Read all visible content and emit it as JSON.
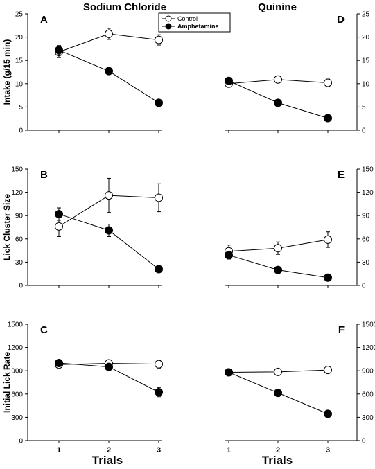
{
  "column_titles": [
    "Sodium Chloride",
    "Quinine"
  ],
  "legend": {
    "control_label": "Control",
    "amphetamine_label": "Amphetamine"
  },
  "x_axis_label": "Trials",
  "chart_data": [
    {
      "type": "line",
      "panel": "A",
      "ylabel": "Intake (g/15 min)",
      "x": [
        1,
        2,
        3
      ],
      "ylim": [
        0,
        25
      ],
      "yticks": [
        0,
        5,
        10,
        15,
        20,
        25
      ],
      "series": [
        {
          "name": "Control",
          "values": [
            16.8,
            20.7,
            19.4
          ],
          "errors": [
            1.2,
            1.2,
            1.1
          ],
          "marker": "open-circle"
        },
        {
          "name": "Amphetamine",
          "values": [
            17.2,
            12.7,
            5.9
          ],
          "errors": [
            1.0,
            0.6,
            0.7
          ],
          "marker": "filled-circle"
        }
      ]
    },
    {
      "type": "line",
      "panel": "B",
      "ylabel": "Lick Cluster Size",
      "x": [
        1,
        2,
        3
      ],
      "ylim": [
        0,
        150
      ],
      "yticks": [
        0,
        30,
        60,
        90,
        120,
        150
      ],
      "series": [
        {
          "name": "Control",
          "values": [
            76,
            116,
            113
          ],
          "errors": [
            13,
            22,
            18
          ],
          "marker": "open-circle"
        },
        {
          "name": "Amphetamine",
          "values": [
            92,
            71,
            21
          ],
          "errors": [
            8,
            8,
            3
          ],
          "marker": "filled-circle"
        }
      ]
    },
    {
      "type": "line",
      "panel": "C",
      "ylabel": "Initial Lick Rate",
      "x": [
        1,
        2,
        3
      ],
      "ylim": [
        0,
        1500
      ],
      "yticks": [
        0,
        300,
        600,
        900,
        1200,
        1500
      ],
      "series": [
        {
          "name": "Control",
          "values": [
            980,
            995,
            985
          ],
          "errors": [
            30,
            30,
            50
          ],
          "marker": "open-circle"
        },
        {
          "name": "Amphetamine",
          "values": [
            1000,
            950,
            625
          ],
          "errors": [
            25,
            25,
            60
          ],
          "marker": "filled-circle"
        }
      ]
    },
    {
      "type": "line",
      "panel": "D",
      "ylabel": "",
      "x": [
        1,
        2,
        3
      ],
      "ylim": [
        0,
        25
      ],
      "yticks": [
        0,
        5,
        10,
        15,
        20,
        25
      ],
      "series": [
        {
          "name": "Control",
          "values": [
            10.0,
            10.9,
            10.2
          ],
          "errors": [
            0.6,
            0.7,
            0.8
          ],
          "marker": "open-circle"
        },
        {
          "name": "Amphetamine",
          "values": [
            10.6,
            5.9,
            2.6
          ],
          "errors": [
            0.5,
            0.4,
            0.3
          ],
          "marker": "filled-circle"
        }
      ]
    },
    {
      "type": "line",
      "panel": "E",
      "ylabel": "",
      "x": [
        1,
        2,
        3
      ],
      "ylim": [
        0,
        150
      ],
      "yticks": [
        0,
        30,
        60,
        90,
        120,
        150
      ],
      "series": [
        {
          "name": "Control",
          "values": [
            44,
            48,
            59
          ],
          "errors": [
            8,
            8,
            10
          ],
          "marker": "open-circle"
        },
        {
          "name": "Amphetamine",
          "values": [
            39,
            20,
            10
          ],
          "errors": [
            5,
            3,
            2
          ],
          "marker": "filled-circle"
        }
      ]
    },
    {
      "type": "line",
      "panel": "F",
      "ylabel": "",
      "x": [
        1,
        2,
        3
      ],
      "ylim": [
        0,
        1500
      ],
      "yticks": [
        0,
        300,
        600,
        900,
        1200,
        1500
      ],
      "series": [
        {
          "name": "Control",
          "values": [
            880,
            885,
            910
          ],
          "errors": [
            25,
            30,
            35
          ],
          "marker": "open-circle"
        },
        {
          "name": "Amphetamine",
          "values": [
            880,
            615,
            345
          ],
          "errors": [
            30,
            45,
            25
          ],
          "marker": "filled-circle"
        }
      ]
    }
  ]
}
